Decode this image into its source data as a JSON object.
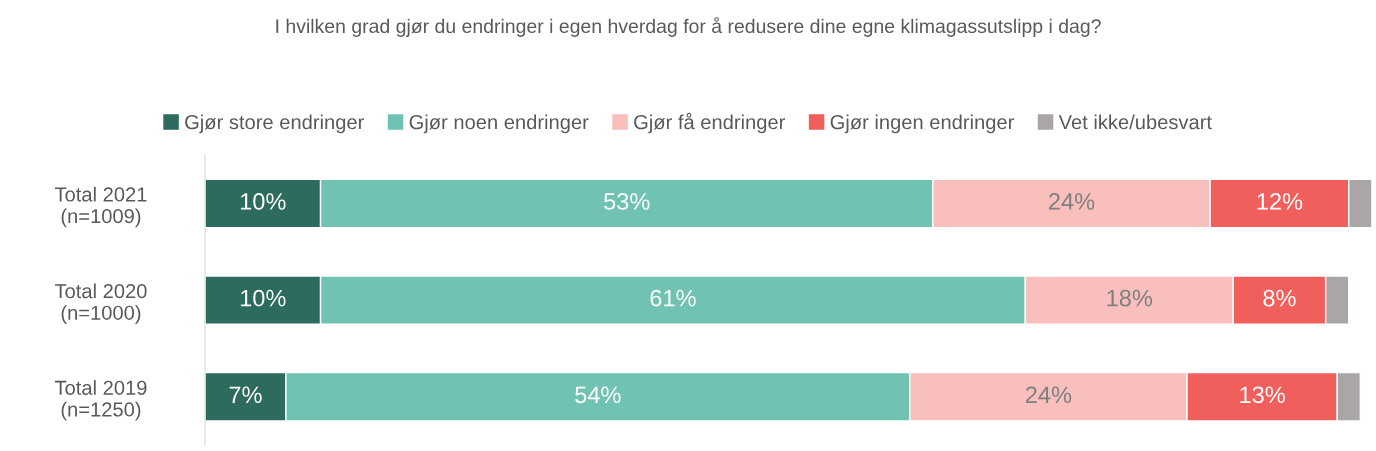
{
  "chart_data": {
    "type": "bar",
    "orientation": "horizontal",
    "stacked": true,
    "title": "I hvilken grad gjør du endringer i egen hverdag for å redusere dine egne klimagassutslipp i dag?",
    "categories": [
      "Total 2021\n(n=1009)",
      "Total 2020\n(n=1000)",
      "Total 2019\n(n=1250)"
    ],
    "series": [
      {
        "name": "Gjør store endringer",
        "color": "#2d6b5f",
        "values": [
          10,
          10,
          7
        ],
        "value_labels": [
          "10%",
          "10%",
          "7%"
        ]
      },
      {
        "name": "Gjør noen endringer",
        "color": "#70c3b3",
        "values": [
          53,
          61,
          54
        ],
        "value_labels": [
          "53%",
          "61%",
          "54%"
        ]
      },
      {
        "name": "Gjør få endringer",
        "color": "#f8bfbc",
        "values": [
          24,
          18,
          24
        ],
        "value_labels": [
          "24%",
          "18%",
          "24%"
        ]
      },
      {
        "name": "Gjør ingen endringer",
        "color": "#f05f5b",
        "values": [
          12,
          8,
          13
        ],
        "value_labels": [
          "12%",
          "8%",
          "13%"
        ]
      },
      {
        "name": "Vet ikke/ubesvart",
        "color": "#aaa6a6",
        "values": [
          2,
          2,
          2
        ],
        "value_labels": [
          null,
          null,
          null
        ]
      }
    ],
    "legend": "top",
    "grid": false
  }
}
